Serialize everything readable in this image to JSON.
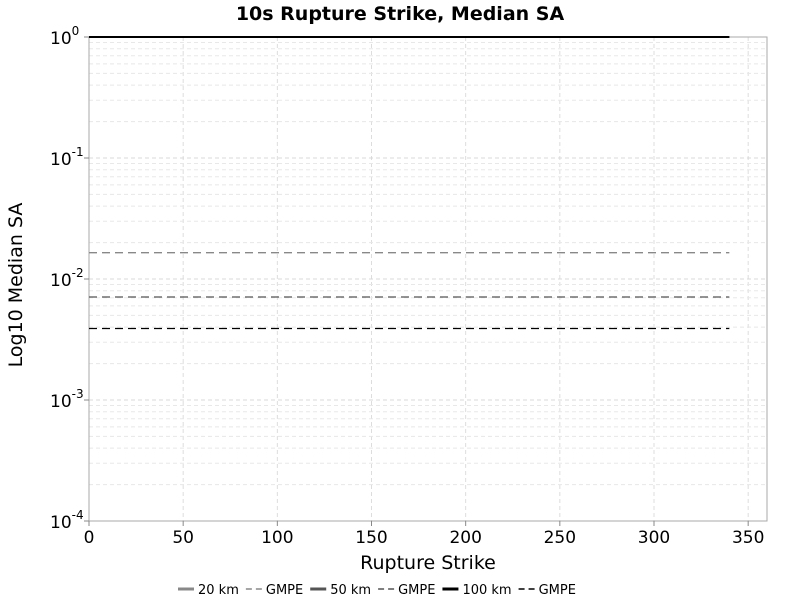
{
  "chart_data": {
    "type": "line",
    "title": "10s Rupture Strike, Median SA",
    "xlabel": "Rupture Strike",
    "ylabel": "Log10 Median SA",
    "xlim": [
      0,
      360
    ],
    "ylim": [
      0.0001,
      1
    ],
    "yscale": "log",
    "grid": true,
    "legend_position": "bottom",
    "xticks": [
      0,
      50,
      100,
      150,
      200,
      250,
      300,
      350
    ],
    "yticks": [
      {
        "value": 1,
        "base": "10",
        "exp": "0"
      },
      {
        "value": 0.1,
        "base": "10",
        "exp": "-1"
      },
      {
        "value": 0.01,
        "base": "10",
        "exp": "-2"
      },
      {
        "value": 0.001,
        "base": "10",
        "exp": "-3"
      },
      {
        "value": 0.0001,
        "base": "10",
        "exp": "-4"
      }
    ],
    "series": [
      {
        "name": "20 km",
        "style": "solid",
        "color": "#888888",
        "width": 2,
        "x": [
          0,
          340
        ],
        "y": [
          1,
          1
        ]
      },
      {
        "name": "GMPE",
        "style": "dashed",
        "color": "#888888",
        "width": 1.3,
        "x": [
          0,
          340
        ],
        "y": [
          0.0165,
          0.0165
        ]
      },
      {
        "name": "50 km",
        "style": "solid",
        "color": "#555555",
        "width": 2,
        "x": [
          0,
          340
        ],
        "y": [
          1,
          1
        ]
      },
      {
        "name": "GMPE",
        "style": "dashed",
        "color": "#555555",
        "width": 1.3,
        "x": [
          0,
          340
        ],
        "y": [
          0.0071,
          0.0071
        ]
      },
      {
        "name": "100 km",
        "style": "solid",
        "color": "#000000",
        "width": 2,
        "x": [
          0,
          340
        ],
        "y": [
          1,
          1
        ]
      },
      {
        "name": "GMPE",
        "style": "dashed",
        "color": "#000000",
        "width": 1.3,
        "x": [
          0,
          340
        ],
        "y": [
          0.0039,
          0.0039
        ]
      }
    ]
  }
}
